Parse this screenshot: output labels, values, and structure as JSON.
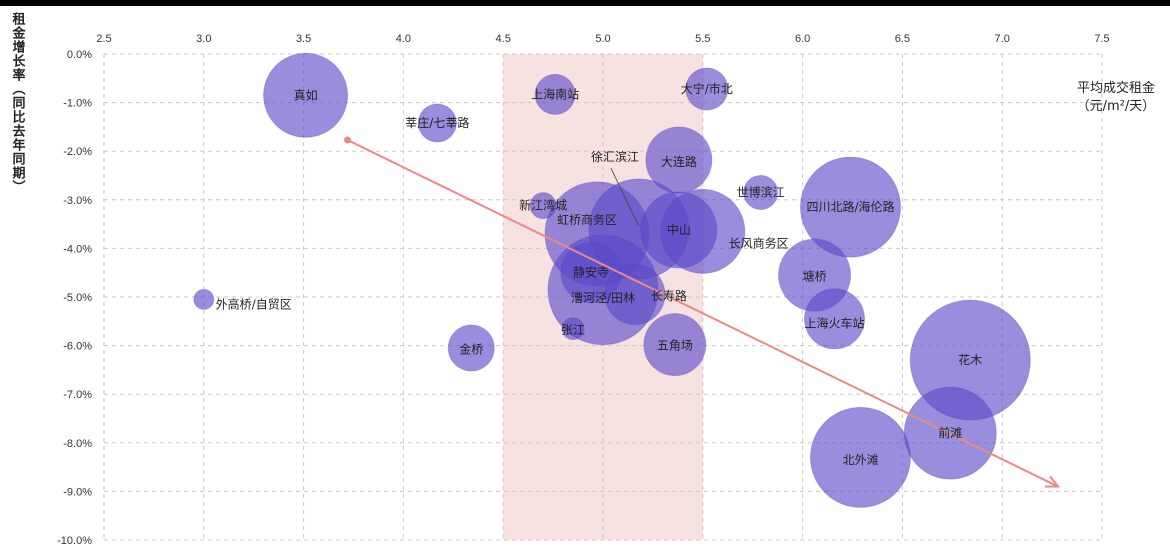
{
  "chart_data": {
    "type": "bubble",
    "title": "",
    "ylabel": "租金增长率（同比去年同期）",
    "xlabel": "平均成交租金（元/m²/天）",
    "xlim": [
      2.5,
      7.5
    ],
    "ylim": [
      -10.0,
      0.0
    ],
    "x_ticks": [
      "2.5",
      "3.0",
      "3.5",
      "4.0",
      "4.5",
      "5.0",
      "5.5",
      "6.0",
      "6.5",
      "7.0",
      "7.5"
    ],
    "y_ticks": [
      "0.0%",
      "-1.0%",
      "-2.0%",
      "-3.0%",
      "-4.0%",
      "-5.0%",
      "-6.0%",
      "-7.0%",
      "-8.0%",
      "-9.0%",
      "-10.0%"
    ],
    "highlight_band": {
      "x_from": 4.5,
      "x_to": 5.5,
      "color": "#f7dcdc"
    },
    "trend_arrow": {
      "x_from": 3.72,
      "y_from": -1.77,
      "x_to": 7.28,
      "y_to": -8.9,
      "color": "#e88a86"
    },
    "bubble_color": "#5a49c9",
    "points": [
      {
        "label": "真如",
        "x": 3.51,
        "y": -0.85,
        "size": 42
      },
      {
        "label": "上海南站",
        "x": 4.76,
        "y": -0.83,
        "size": 20
      },
      {
        "label": "大宁/市北",
        "x": 5.52,
        "y": -0.72,
        "size": 21
      },
      {
        "label": "莘庄/七莘路",
        "x": 4.17,
        "y": -1.42,
        "size": 19
      },
      {
        "label": "大连路",
        "x": 5.38,
        "y": -2.18,
        "size": 33
      },
      {
        "label": "徐汇滨江",
        "x": 5.18,
        "y": -3.6,
        "size": 50
      },
      {
        "label": "世博滨江",
        "x": 5.79,
        "y": -2.85,
        "size": 17
      },
      {
        "label": "四川北路/海伦路",
        "x": 6.24,
        "y": -3.15,
        "size": 50
      },
      {
        "label": "新江湾城",
        "x": 4.7,
        "y": -3.12,
        "size": 13
      },
      {
        "label": "虹桥商务区",
        "x": 4.97,
        "y": -3.7,
        "size": 52
      },
      {
        "label": "长风商务区",
        "x": 5.5,
        "y": -3.65,
        "size": 42
      },
      {
        "label": "中山公园",
        "x": 5.38,
        "y": -3.62,
        "size": 38
      },
      {
        "label": "静安寺",
        "x": 4.94,
        "y": -4.5,
        "size": 30
      },
      {
        "label": "塘桥",
        "x": 6.06,
        "y": -4.55,
        "size": 36
      },
      {
        "label": "外高桥/自贸区",
        "x": 3.0,
        "y": -5.05,
        "size": 10
      },
      {
        "label": "漕河泾/田林",
        "x": 5.0,
        "y": -4.85,
        "size": 55
      },
      {
        "label": "长寿路",
        "x": 5.16,
        "y": -4.95,
        "size": 30
      },
      {
        "label": "上海火车站",
        "x": 6.16,
        "y": -5.45,
        "size": 30
      },
      {
        "label": "张江",
        "x": 4.85,
        "y": -5.65,
        "size": 11
      },
      {
        "label": "金桥",
        "x": 4.34,
        "y": -6.05,
        "size": 23
      },
      {
        "label": "五角场",
        "x": 5.36,
        "y": -5.98,
        "size": 31
      },
      {
        "label": "花木",
        "x": 6.84,
        "y": -6.3,
        "size": 60
      },
      {
        "label": "前滩",
        "x": 6.74,
        "y": -7.8,
        "size": 46
      },
      {
        "label": "北外滩",
        "x": 6.29,
        "y": -8.3,
        "size": 50
      }
    ],
    "visible_labels": [
      {
        "text": "真如",
        "x": 3.51,
        "y": -0.85
      },
      {
        "text": "上海南站",
        "x": 4.76,
        "y": -0.83
      },
      {
        "text": "大宁/市北",
        "x": 5.52,
        "y": -0.72
      },
      {
        "text": "莘庄/七莘路",
        "x": 4.17,
        "y": -1.42
      },
      {
        "text": "徐汇滨江",
        "x": 5.06,
        "y": -2.12
      },
      {
        "text": "大连路",
        "x": 5.38,
        "y": -2.22
      },
      {
        "text": "世博滨江",
        "x": 5.79,
        "y": -2.85
      },
      {
        "text": "四川北路/海伦路",
        "x": 6.24,
        "y": -3.15
      },
      {
        "text": "新江湾城",
        "x": 4.7,
        "y": -3.12
      },
      {
        "text": "虹桥商务区",
        "x": 4.92,
        "y": -3.42
      },
      {
        "text": "中山",
        "x": 5.38,
        "y": -3.62
      },
      {
        "text": "长风商务区",
        "x": 5.78,
        "y": -3.9
      },
      {
        "text": "静安寺",
        "x": 4.94,
        "y": -4.5
      },
      {
        "text": "塘桥",
        "x": 6.06,
        "y": -4.58
      },
      {
        "text": "外高桥/自贸区",
        "x": 3.25,
        "y": -5.15
      },
      {
        "text": "漕河泾/田林",
        "x": 5.0,
        "y": -5.02
      },
      {
        "text": "长寿路",
        "x": 5.33,
        "y": -4.98
      },
      {
        "text": "上海火车站",
        "x": 6.16,
        "y": -5.55
      },
      {
        "text": "张江",
        "x": 4.85,
        "y": -5.68
      },
      {
        "text": "金桥",
        "x": 4.34,
        "y": -6.08
      },
      {
        "text": "五角场",
        "x": 5.36,
        "y": -6.0
      },
      {
        "text": "花木",
        "x": 6.84,
        "y": -6.3
      },
      {
        "text": "前滩",
        "x": 6.74,
        "y": -7.8
      },
      {
        "text": "北外滩",
        "x": 6.29,
        "y": -8.35
      }
    ],
    "leader_line": {
      "x_from": 5.04,
      "y_from": -2.35,
      "x_to": 5.18,
      "y_to": -3.55
    },
    "grid": true
  },
  "ylabel_text": "租金增长率（同比去年同期）",
  "xunit_line1": "平均成交租金",
  "xunit_line2": "（元/m²/天）"
}
